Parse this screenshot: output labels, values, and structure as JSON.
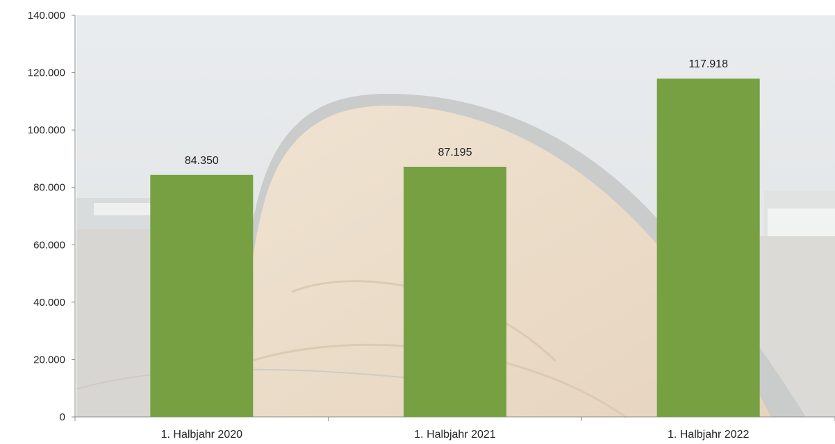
{
  "chart_data": {
    "type": "bar",
    "categories": [
      "1. Halbjahr 2020",
      "1. Halbjahr 2021",
      "1. Halbjahr 2022"
    ],
    "values": [
      84350,
      87195,
      117918
    ],
    "value_labels": [
      "84.350",
      "87.195",
      "117.918"
    ],
    "ylim": [
      0,
      140000
    ],
    "yticks": [
      0,
      20000,
      40000,
      60000,
      80000,
      100000,
      120000,
      140000
    ],
    "ytick_labels": [
      "0",
      "20.000",
      "40.000",
      "60.000",
      "80.000",
      "100.000",
      "120.000",
      "140.000"
    ],
    "title": "",
    "xlabel": "",
    "ylabel": "",
    "grid": false,
    "legend": "none",
    "bar_color": "#76a042",
    "background": "photo of a curved wooden timber roof structure (faded)"
  }
}
